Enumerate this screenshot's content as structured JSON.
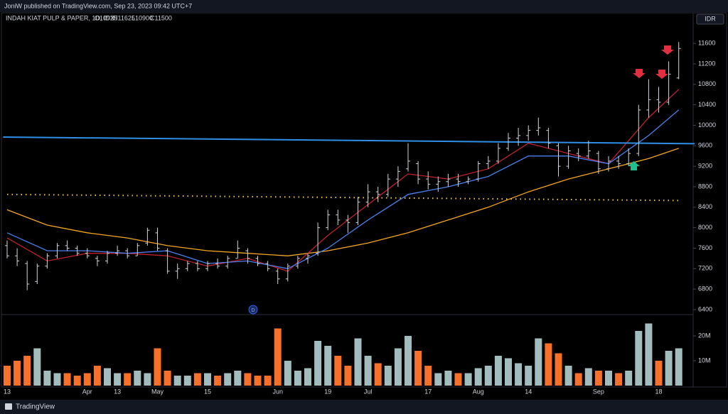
{
  "header": {
    "publisher": "JoniW published on TradingView.com, Sep 23, 2023 09:42 UTC+7"
  },
  "footer": {
    "brand": "TradingView"
  },
  "chart_data": {
    "type": "ohlc",
    "title": "INDAH KIAT PULP & PAPER, 1D, IDX",
    "ohlc_legend": [
      "O10925",
      "H11625",
      "L10900",
      "C11500"
    ],
    "currency": "IDR",
    "categories": [
      "13",
      null,
      null,
      null,
      null,
      null,
      null,
      null,
      "Apr",
      null,
      null,
      "13",
      null,
      null,
      null,
      "May",
      null,
      null,
      null,
      null,
      "15",
      null,
      null,
      null,
      null,
      null,
      null,
      "Jun",
      null,
      null,
      null,
      null,
      "19",
      null,
      null,
      null,
      "Jul",
      null,
      null,
      null,
      null,
      null,
      "17",
      null,
      null,
      null,
      null,
      "Aug",
      null,
      null,
      null,
      null,
      "14",
      null,
      null,
      null,
      null,
      null,
      null,
      "Sep",
      null,
      null,
      null,
      null,
      null,
      "18",
      null,
      null
    ],
    "open": [
      7650,
      7450,
      7300,
      6950,
      7250,
      7450,
      7650,
      7600,
      7500,
      7400,
      7350,
      7500,
      7550,
      7450,
      7700,
      7900,
      7550,
      7150,
      7200,
      7300,
      7200,
      7300,
      7250,
      7400,
      7550,
      7400,
      7300,
      7150,
      7000,
      7250,
      7400,
      7500,
      8000,
      8250,
      8150,
      8100,
      8500,
      8700,
      8650,
      8950,
      9150,
      9250,
      8950,
      8850,
      8900,
      8950,
      8900,
      8950,
      9250,
      9300,
      9550,
      9750,
      9800,
      9900,
      9900,
      9600,
      9200,
      9450,
      9400,
      9450,
      9150,
      9300,
      9250,
      9450,
      10300,
      10500,
      10450,
      10925
    ],
    "high": [
      7750,
      7600,
      7350,
      7300,
      7500,
      7700,
      7750,
      7650,
      7600,
      7450,
      7550,
      7650,
      7600,
      7700,
      8000,
      8000,
      7600,
      7300,
      7350,
      7350,
      7350,
      7400,
      7450,
      7750,
      7600,
      7450,
      7350,
      7200,
      7300,
      7450,
      7500,
      8100,
      8350,
      8350,
      8250,
      8600,
      8850,
      8800,
      9050,
      9200,
      9650,
      9300,
      9100,
      9000,
      9050,
      9050,
      9000,
      9300,
      9400,
      9650,
      9850,
      9950,
      10000,
      10150,
      9950,
      9650,
      9600,
      9550,
      9700,
      9500,
      9400,
      9400,
      9550,
      10400,
      10900,
      10750,
      11250,
      11625
    ],
    "low": [
      7400,
      7250,
      6780,
      6900,
      7200,
      7400,
      7550,
      7450,
      7400,
      7250,
      7300,
      7450,
      7400,
      7450,
      7650,
      7550,
      7100,
      7000,
      7150,
      7150,
      7150,
      7200,
      7200,
      7400,
      7300,
      7250,
      7150,
      6900,
      6950,
      7200,
      7300,
      7450,
      7950,
      8050,
      7900,
      8050,
      8400,
      8500,
      8600,
      8800,
      9100,
      8850,
      8750,
      8700,
      8800,
      8800,
      8850,
      8900,
      9150,
      9250,
      9500,
      9600,
      9700,
      9800,
      9550,
      9000,
      9150,
      9300,
      9350,
      9050,
      9100,
      9150,
      9200,
      9400,
      10150,
      10250,
      10400,
      10900
    ],
    "close": [
      7450,
      7350,
      6900,
      7250,
      7450,
      7650,
      7600,
      7500,
      7450,
      7350,
      7500,
      7550,
      7450,
      7650,
      7950,
      7600,
      7150,
      7200,
      7300,
      7200,
      7300,
      7250,
      7400,
      7600,
      7400,
      7300,
      7200,
      7000,
      7250,
      7400,
      7450,
      8000,
      8250,
      8150,
      8100,
      8500,
      8700,
      8650,
      8950,
      9100,
      9300,
      8950,
      8850,
      8900,
      8950,
      8900,
      8950,
      9250,
      9300,
      9550,
      9750,
      9800,
      9900,
      9950,
      9650,
      9200,
      9500,
      9400,
      9500,
      9150,
      9300,
      9250,
      9450,
      10300,
      10500,
      10450,
      11000,
      11500
    ],
    "volume": [
      8000000,
      10000000,
      12000000,
      15000000,
      6000000,
      5000000,
      5000000,
      4000000,
      5000000,
      8000000,
      7000000,
      5000000,
      5000000,
      6000000,
      5000000,
      15000000,
      6000000,
      4000000,
      4000000,
      5000000,
      5000000,
      4000000,
      5000000,
      6000000,
      5000000,
      4000000,
      4000000,
      23000000,
      10000000,
      6000000,
      7000000,
      18000000,
      16000000,
      12000000,
      8000000,
      19000000,
      12000000,
      9000000,
      8000000,
      15000000,
      20000000,
      14000000,
      8000000,
      5000000,
      6000000,
      5000000,
      5000000,
      7000000,
      8000000,
      12000000,
      11000000,
      9000000,
      8000000,
      19000000,
      17000000,
      13000000,
      8000000,
      5000000,
      7000000,
      6000000,
      6000000,
      5000000,
      6000000,
      22000000,
      25000000,
      10000000,
      14000000,
      15000000
    ],
    "up_color": "#a3bdbf",
    "down_color": "#f7712a",
    "bar_color": "#d1d4dc",
    "ylim": [
      6275,
      12170
    ],
    "yticks": [
      6400,
      6800,
      7200,
      7600,
      8000,
      8400,
      8800,
      9200,
      9600,
      10000,
      10400,
      10800,
      11200,
      11600
    ],
    "volume_ylim": [
      0,
      28000000
    ],
    "volume_ticks": [
      {
        "value": 10000000,
        "label": "10M"
      },
      {
        "value": 20000000,
        "label": "20M"
      }
    ],
    "lines": [
      {
        "color": "#f5a623",
        "style": "solid",
        "x": [
          0,
          4,
          8,
          12,
          16,
          20,
          24,
          28,
          32,
          36,
          40,
          44,
          48,
          52,
          56,
          60,
          64,
          67
        ],
        "values": [
          8350,
          8050,
          7900,
          7800,
          7650,
          7550,
          7500,
          7450,
          7550,
          7700,
          7900,
          8150,
          8400,
          8700,
          8950,
          9150,
          9350,
          9550
        ]
      },
      {
        "color": "#c0222a",
        "style": "solid",
        "x": [
          0,
          4,
          8,
          12,
          16,
          20,
          24,
          28,
          32,
          36,
          40,
          44,
          48,
          52,
          56,
          60,
          64,
          67
        ],
        "values": [
          7800,
          7350,
          7500,
          7500,
          7450,
          7250,
          7400,
          7150,
          7850,
          8450,
          9050,
          8950,
          9150,
          9650,
          9450,
          9250,
          10150,
          10700
        ]
      },
      {
        "color": "#4a7ff0",
        "style": "solid",
        "x": [
          0,
          4,
          8,
          12,
          16,
          20,
          24,
          28,
          32,
          36,
          40,
          44,
          48,
          52,
          56,
          60,
          64,
          67
        ],
        "values": [
          7900,
          7550,
          7550,
          7500,
          7550,
          7300,
          7350,
          7200,
          7600,
          8150,
          8650,
          8800,
          9000,
          9400,
          9400,
          9250,
          9800,
          10300
        ]
      },
      {
        "color": "#f5c542",
        "style": "dotted",
        "x": [
          0,
          67
        ],
        "values": [
          8650,
          8530
        ]
      },
      {
        "color": "#2f8fe8",
        "style": "trend",
        "x": [
          -0.4,
          68.6
        ],
        "values": [
          9770,
          9640
        ]
      }
    ]
  }
}
